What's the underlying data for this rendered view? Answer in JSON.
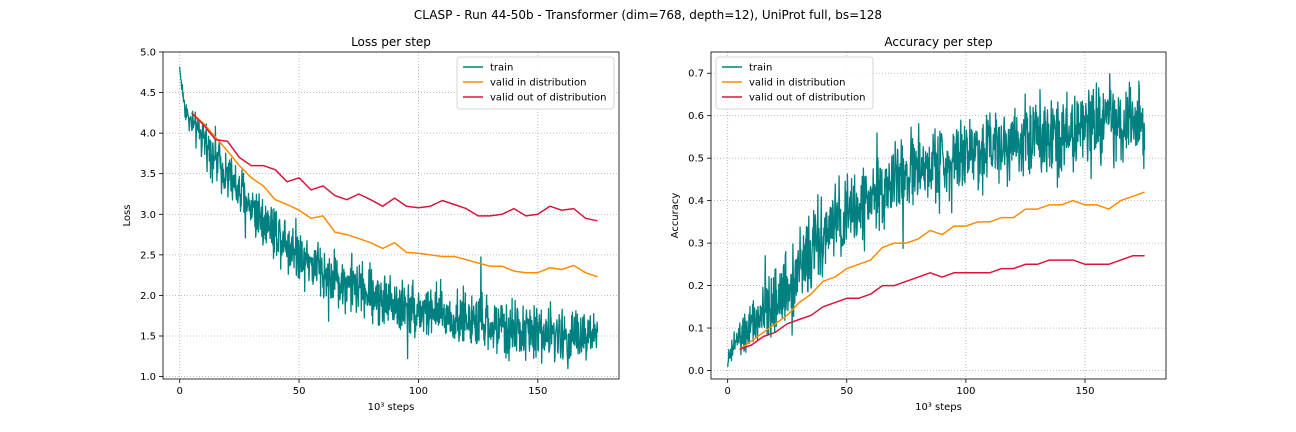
{
  "figure": {
    "suptitle": "CLASP - Run 44-50b - Transformer (dim=768, depth=12), UniProt full, bs=128"
  },
  "colors": {
    "train": "#008080",
    "valid_in": "#ff8c00",
    "valid_out": "#dc143c",
    "grid": "#b0b0b0"
  },
  "chart_data": [
    {
      "type": "line",
      "title": "Loss per step",
      "xlabel": "10³ steps",
      "ylabel": "Loss",
      "xlim": [
        -7,
        184
      ],
      "ylim": [
        0.97,
        5.0
      ],
      "xticks": [
        0,
        50,
        100,
        150
      ],
      "yticks": [
        1.0,
        1.5,
        2.0,
        2.5,
        3.0,
        3.5,
        4.0,
        4.5,
        5.0
      ],
      "ytick_labels": [
        "1.0",
        "1.5",
        "2.0",
        "2.5",
        "3.0",
        "3.5",
        "4.0",
        "4.5",
        "5.0"
      ],
      "grid": true,
      "legend_position": "upper right",
      "series": [
        {
          "name": "train",
          "color": "#008080",
          "noisy": true,
          "x": [
            0,
            1,
            2,
            4,
            6,
            8,
            10,
            12,
            15,
            18,
            21,
            24,
            27,
            30,
            35,
            40,
            45,
            50,
            55,
            60,
            65,
            70,
            75,
            80,
            85,
            90,
            95,
            100,
            105,
            110,
            115,
            120,
            125,
            130,
            135,
            140,
            145,
            150,
            155,
            160,
            165,
            170,
            175
          ],
          "y": [
            4.8,
            4.55,
            4.35,
            4.15,
            4.08,
            4.0,
            3.9,
            3.85,
            3.7,
            3.6,
            3.45,
            3.3,
            3.2,
            3.1,
            2.95,
            2.8,
            2.65,
            2.55,
            2.4,
            2.3,
            2.2,
            2.15,
            2.08,
            2.02,
            1.95,
            1.9,
            1.85,
            1.82,
            1.8,
            1.75,
            1.72,
            1.7,
            1.65,
            1.62,
            1.6,
            1.58,
            1.55,
            1.55,
            1.52,
            1.5,
            1.5,
            1.48,
            1.48
          ],
          "noise": [
            0.05,
            0.05,
            0.07,
            0.08,
            0.09,
            0.1,
            0.12,
            0.13,
            0.14,
            0.15,
            0.16,
            0.17,
            0.17,
            0.17,
            0.17,
            0.17,
            0.17,
            0.17,
            0.17,
            0.17,
            0.17,
            0.17,
            0.17,
            0.17,
            0.17,
            0.17,
            0.17,
            0.17,
            0.17,
            0.17,
            0.17,
            0.17,
            0.17,
            0.17,
            0.17,
            0.17,
            0.17,
            0.17,
            0.17,
            0.17,
            0.17,
            0.17,
            0.17
          ]
        },
        {
          "name": "valid in distribution",
          "color": "#ff8c00",
          "x": [
            5,
            10,
            15,
            20,
            25,
            30,
            35,
            40,
            45,
            50,
            55,
            60,
            65,
            70,
            75,
            80,
            85,
            90,
            95,
            100,
            105,
            110,
            115,
            120,
            125,
            130,
            135,
            140,
            145,
            150,
            155,
            160,
            165,
            170,
            175
          ],
          "y": [
            4.25,
            4.12,
            3.95,
            3.78,
            3.6,
            3.45,
            3.35,
            3.18,
            3.12,
            3.05,
            2.95,
            2.98,
            2.78,
            2.75,
            2.7,
            2.65,
            2.58,
            2.65,
            2.53,
            2.52,
            2.5,
            2.48,
            2.48,
            2.44,
            2.4,
            2.36,
            2.36,
            2.3,
            2.28,
            2.28,
            2.34,
            2.32,
            2.37,
            2.28,
            2.23
          ]
        },
        {
          "name": "valid out of distribution",
          "color": "#dc143c",
          "x": [
            5,
            10,
            15,
            20,
            25,
            30,
            35,
            40,
            45,
            50,
            55,
            60,
            65,
            70,
            75,
            80,
            85,
            90,
            95,
            100,
            105,
            110,
            115,
            120,
            125,
            130,
            135,
            140,
            145,
            150,
            155,
            160,
            165,
            170,
            175
          ],
          "y": [
            4.25,
            4.1,
            3.92,
            3.9,
            3.7,
            3.6,
            3.6,
            3.55,
            3.4,
            3.45,
            3.3,
            3.35,
            3.23,
            3.18,
            3.25,
            3.18,
            3.1,
            3.2,
            3.1,
            3.08,
            3.1,
            3.17,
            3.12,
            3.07,
            2.98,
            2.98,
            3.0,
            3.07,
            2.98,
            3.0,
            3.1,
            3.05,
            3.07,
            2.95,
            2.92
          ]
        }
      ]
    },
    {
      "type": "line",
      "title": "Accuracy per step",
      "xlabel": "10³ steps",
      "ylabel": "Accuracy",
      "xlim": [
        -7,
        184
      ],
      "ylim": [
        -0.02,
        0.75
      ],
      "xticks": [
        0,
        50,
        100,
        150
      ],
      "yticks": [
        0.0,
        0.1,
        0.2,
        0.3,
        0.4,
        0.5,
        0.6,
        0.7
      ],
      "ytick_labels": [
        "0.0",
        "0.1",
        "0.2",
        "0.3",
        "0.4",
        "0.5",
        "0.6",
        "0.7"
      ],
      "grid": true,
      "legend_position": "upper left",
      "series": [
        {
          "name": "train",
          "color": "#008080",
          "noisy": true,
          "x": [
            0,
            2,
            4,
            6,
            8,
            10,
            12,
            15,
            18,
            21,
            24,
            27,
            30,
            35,
            40,
            45,
            50,
            55,
            60,
            65,
            70,
            75,
            80,
            85,
            90,
            95,
            100,
            105,
            110,
            115,
            120,
            125,
            130,
            135,
            140,
            145,
            150,
            155,
            160,
            165,
            170,
            175
          ],
          "y": [
            0.02,
            0.05,
            0.07,
            0.08,
            0.09,
            0.1,
            0.11,
            0.13,
            0.15,
            0.17,
            0.19,
            0.21,
            0.24,
            0.28,
            0.31,
            0.34,
            0.36,
            0.38,
            0.41,
            0.43,
            0.44,
            0.46,
            0.47,
            0.48,
            0.49,
            0.5,
            0.51,
            0.52,
            0.53,
            0.54,
            0.55,
            0.55,
            0.56,
            0.56,
            0.57,
            0.57,
            0.57,
            0.58,
            0.58,
            0.58,
            0.58,
            0.58
          ],
          "noise": [
            0.01,
            0.015,
            0.02,
            0.025,
            0.03,
            0.03,
            0.03,
            0.035,
            0.04,
            0.04,
            0.045,
            0.045,
            0.045,
            0.045,
            0.045,
            0.045,
            0.045,
            0.045,
            0.045,
            0.045,
            0.045,
            0.045,
            0.045,
            0.045,
            0.045,
            0.045,
            0.045,
            0.045,
            0.045,
            0.045,
            0.045,
            0.045,
            0.045,
            0.045,
            0.045,
            0.045,
            0.045,
            0.045,
            0.045,
            0.045,
            0.045,
            0.045
          ]
        },
        {
          "name": "valid in distribution",
          "color": "#ff8c00",
          "x": [
            5,
            10,
            15,
            20,
            25,
            30,
            35,
            40,
            45,
            50,
            55,
            60,
            65,
            70,
            75,
            80,
            85,
            90,
            95,
            100,
            105,
            110,
            115,
            120,
            125,
            130,
            135,
            140,
            145,
            150,
            155,
            160,
            165,
            170,
            175
          ],
          "y": [
            0.05,
            0.07,
            0.09,
            0.11,
            0.13,
            0.16,
            0.18,
            0.21,
            0.22,
            0.24,
            0.25,
            0.26,
            0.29,
            0.3,
            0.3,
            0.31,
            0.33,
            0.32,
            0.34,
            0.34,
            0.35,
            0.35,
            0.36,
            0.36,
            0.38,
            0.38,
            0.39,
            0.39,
            0.4,
            0.39,
            0.39,
            0.38,
            0.4,
            0.41,
            0.42
          ]
        },
        {
          "name": "valid out of distribution",
          "color": "#dc143c",
          "x": [
            5,
            10,
            15,
            20,
            25,
            30,
            35,
            40,
            45,
            50,
            55,
            60,
            65,
            70,
            75,
            80,
            85,
            90,
            95,
            100,
            105,
            110,
            115,
            120,
            125,
            130,
            135,
            140,
            145,
            150,
            155,
            160,
            165,
            170,
            175
          ],
          "y": [
            0.05,
            0.06,
            0.08,
            0.09,
            0.11,
            0.12,
            0.13,
            0.15,
            0.16,
            0.17,
            0.17,
            0.18,
            0.2,
            0.2,
            0.21,
            0.22,
            0.23,
            0.22,
            0.23,
            0.23,
            0.23,
            0.23,
            0.24,
            0.24,
            0.25,
            0.25,
            0.26,
            0.26,
            0.26,
            0.25,
            0.25,
            0.25,
            0.26,
            0.27,
            0.27
          ]
        }
      ]
    }
  ]
}
